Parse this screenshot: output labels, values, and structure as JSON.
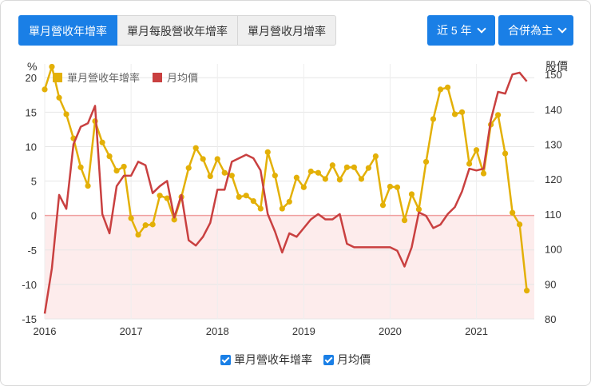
{
  "tabs": [
    {
      "label": "單月營收年增率",
      "active": true
    },
    {
      "label": "單月每股營收年增率",
      "active": false
    },
    {
      "label": "單月營收月增率",
      "active": false
    }
  ],
  "period_dropdown": "近 5 年",
  "scope_dropdown": "合併為主",
  "colors": {
    "yoy": "#e3b007",
    "price": "#c94040",
    "zero_line": "#f0a0a0",
    "fill": "#fdecec",
    "accent": "#1a7fe6"
  },
  "chart_data": {
    "type": "line",
    "y_left_label": "%",
    "y_right_label": "股價",
    "y_left_range": [
      -15,
      22
    ],
    "y_right_range": [
      80,
      153
    ],
    "y_left_ticks": [
      -15,
      -10,
      -5,
      0,
      5,
      10,
      15,
      20
    ],
    "y_right_ticks": [
      80,
      90,
      100,
      110,
      120,
      130,
      140,
      150
    ],
    "x_ticks": [
      "2016",
      "2017",
      "2018",
      "2019",
      "2020",
      "2021"
    ],
    "x_range": [
      2016.0,
      2021.67
    ],
    "x": [
      2016.0,
      2016.083,
      2016.167,
      2016.25,
      2016.333,
      2016.417,
      2016.5,
      2016.583,
      2016.667,
      2016.75,
      2016.833,
      2016.917,
      2017.0,
      2017.083,
      2017.167,
      2017.25,
      2017.333,
      2017.417,
      2017.5,
      2017.583,
      2017.667,
      2017.75,
      2017.833,
      2017.917,
      2018.0,
      2018.083,
      2018.167,
      2018.25,
      2018.333,
      2018.417,
      2018.5,
      2018.583,
      2018.667,
      2018.75,
      2018.833,
      2018.917,
      2019.0,
      2019.083,
      2019.167,
      2019.25,
      2019.333,
      2019.417,
      2019.5,
      2019.583,
      2019.667,
      2019.75,
      2019.833,
      2019.917,
      2020.0,
      2020.083,
      2020.167,
      2020.25,
      2020.333,
      2020.417,
      2020.5,
      2020.583,
      2020.667,
      2020.75,
      2020.833,
      2020.917,
      2021.0,
      2021.083,
      2021.167,
      2021.25,
      2021.333,
      2021.417,
      2021.5,
      2021.583
    ],
    "series": [
      {
        "name": "單月營收年增率",
        "axis": "left",
        "color": "#e3b007",
        "values": [
          18.3,
          21.6,
          17.1,
          14.7,
          11.2,
          7.0,
          4.3,
          13.7,
          10.6,
          8.6,
          6.5,
          7.1,
          -0.4,
          -2.8,
          -1.4,
          -1.3,
          2.9,
          2.5,
          -0.6,
          2.7,
          6.9,
          9.8,
          8.2,
          5.7,
          8.2,
          6.2,
          5.8,
          2.7,
          2.9,
          2.1,
          1.0,
          9.2,
          5.8,
          1.0,
          2.0,
          5.5,
          4.1,
          6.4,
          6.2,
          5.3,
          7.3,
          5.2,
          7.0,
          7.0,
          5.3,
          6.9,
          8.6,
          1.5,
          4.2,
          4.1,
          -0.7,
          3.1,
          0.9,
          7.8,
          14.0,
          18.3,
          18.6,
          14.7,
          15.0,
          7.5,
          9.5,
          6.1,
          13.2,
          14.6,
          9.0,
          0.4,
          -1.3,
          -10.9
        ]
      },
      {
        "name": "月均價",
        "axis": "right",
        "color": "#c94040",
        "values": [
          81.5,
          94.5,
          115.5,
          111.5,
          130.0,
          135.0,
          136.0,
          141.0,
          110.0,
          104.5,
          118.0,
          121.0,
          121.0,
          125.0,
          124.0,
          116.0,
          118.0,
          119.5,
          109.0,
          115.5,
          102.5,
          101.0,
          103.5,
          107.5,
          117.0,
          117.0,
          125.0,
          126.0,
          127.0,
          126.0,
          122.5,
          110.0,
          105.0,
          99.0,
          104.5,
          103.5,
          106.0,
          108.5,
          110.0,
          108.5,
          108.5,
          110.0,
          101.5,
          100.5,
          100.5,
          100.5,
          100.5,
          100.5,
          100.5,
          99.5,
          95.0,
          100.5,
          110.5,
          109.5,
          106.0,
          107.0,
          110.0,
          112.0,
          116.5,
          123.0,
          122.5,
          123.0,
          137.0,
          145.0,
          144.5,
          150.0,
          150.5,
          148.0
        ]
      }
    ],
    "legend_top": [
      "單月營收年增率",
      "月均價"
    ],
    "legend_bottom": [
      "單月營收年增率",
      "月均價"
    ]
  }
}
